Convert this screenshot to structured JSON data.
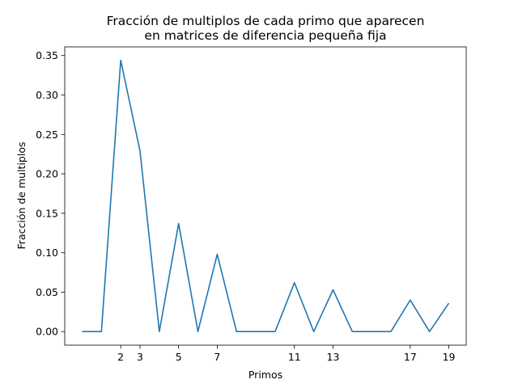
{
  "chart_data": {
    "type": "line",
    "title_lines": [
      "Fracción de multiplos de cada primo que aparecen",
      "en matrices de diferencia pequeña fija"
    ],
    "xlabel": "Primos",
    "ylabel": "Fracción de multiplos",
    "xlim": [
      -0.9,
      19.9
    ],
    "ylim": [
      -0.0172,
      0.361
    ],
    "xticks": [
      2,
      3,
      5,
      7,
      11,
      13,
      17,
      19
    ],
    "xtick_labels": [
      "2",
      "3",
      "5",
      "7",
      "11",
      "13",
      "17",
      "19"
    ],
    "yticks": [
      0.0,
      0.05,
      0.1,
      0.15,
      0.2,
      0.25,
      0.3,
      0.35
    ],
    "ytick_labels": [
      "0.00",
      "0.05",
      "0.10",
      "0.15",
      "0.20",
      "0.25",
      "0.30",
      "0.35"
    ],
    "grid": false,
    "line_color": "#1f77b4",
    "series": [
      {
        "x": [
          0,
          1,
          2,
          3,
          4,
          5,
          6,
          7,
          8,
          9,
          10,
          11,
          12,
          13,
          14,
          15,
          16,
          17,
          18,
          19
        ],
        "values": [
          0,
          0,
          0.344,
          0.229,
          0,
          0.137,
          0,
          0.098,
          0,
          0,
          0,
          0.062,
          0,
          0.053,
          0,
          0,
          0,
          0.04,
          0,
          0.036
        ]
      }
    ]
  }
}
